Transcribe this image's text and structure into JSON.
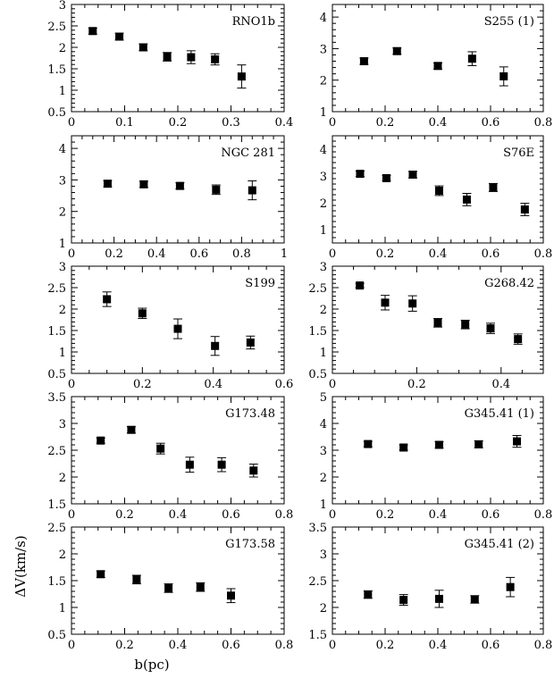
{
  "figure": {
    "ylabel": "ΔV(km/s)",
    "xlabel": "b(pc)"
  },
  "chart_data": [
    {
      "type": "scatter",
      "title": "RNO1b",
      "xlim": [
        0,
        0.4
      ],
      "ylim": [
        0.5,
        3
      ],
      "xticks": [
        0,
        0.1,
        0.2,
        0.3,
        0.4
      ],
      "yticks": [
        0.5,
        1,
        1.5,
        2,
        2.5,
        3
      ],
      "x": [
        0.04,
        0.09,
        0.135,
        0.18,
        0.225,
        0.27,
        0.32
      ],
      "y": [
        2.38,
        2.25,
        2.0,
        1.78,
        1.77,
        1.72,
        1.32
      ],
      "yerr": [
        0.07,
        0.08,
        0.08,
        0.1,
        0.15,
        0.13,
        0.27
      ]
    },
    {
      "type": "scatter",
      "title": "S255 (1)",
      "xlim": [
        0,
        0.8
      ],
      "ylim": [
        1,
        4.4
      ],
      "xticks": [
        0,
        0.2,
        0.4,
        0.6,
        0.8
      ],
      "yticks": [
        1,
        2,
        3,
        4
      ],
      "x": [
        0.12,
        0.245,
        0.4,
        0.53,
        0.65
      ],
      "y": [
        2.6,
        2.92,
        2.45,
        2.68,
        2.12
      ],
      "yerr": [
        0.1,
        0.1,
        0.1,
        0.22,
        0.3
      ]
    },
    {
      "type": "scatter",
      "title": "NGC 281",
      "xlim": [
        0,
        1
      ],
      "ylim": [
        1,
        4.4
      ],
      "xticks": [
        0,
        0.2,
        0.4,
        0.6,
        0.8,
        1
      ],
      "yticks": [
        1,
        2,
        3,
        4
      ],
      "x": [
        0.17,
        0.34,
        0.51,
        0.68,
        0.85
      ],
      "y": [
        2.88,
        2.86,
        2.81,
        2.69,
        2.67
      ],
      "yerr": [
        0.1,
        0.1,
        0.1,
        0.15,
        0.3
      ]
    },
    {
      "type": "scatter",
      "title": "S76E",
      "xlim": [
        0,
        0.8
      ],
      "ylim": [
        0.5,
        4.5
      ],
      "xticks": [
        0,
        0.2,
        0.4,
        0.6,
        0.8
      ],
      "yticks": [
        1,
        2,
        3,
        4
      ],
      "x": [
        0.105,
        0.205,
        0.305,
        0.405,
        0.51,
        0.61,
        0.73
      ],
      "y": [
        3.08,
        2.92,
        3.05,
        2.45,
        2.12,
        2.57,
        1.75
      ],
      "yerr": [
        0.1,
        0.1,
        0.12,
        0.18,
        0.23,
        0.15,
        0.23
      ]
    },
    {
      "type": "scatter",
      "title": "S199",
      "xlim": [
        0,
        0.6
      ],
      "ylim": [
        0.5,
        3
      ],
      "xticks": [
        0,
        0.2,
        0.4,
        0.6
      ],
      "yticks": [
        0.5,
        1,
        1.5,
        2,
        2.5,
        3
      ],
      "x": [
        0.1,
        0.2,
        0.3,
        0.405,
        0.505
      ],
      "y": [
        2.23,
        1.9,
        1.54,
        1.14,
        1.22
      ],
      "yerr": [
        0.17,
        0.12,
        0.23,
        0.22,
        0.15
      ]
    },
    {
      "type": "scatter",
      "title": "G268.42",
      "xlim": [
        0,
        0.5
      ],
      "ylim": [
        0.5,
        3
      ],
      "xticks": [
        0,
        0.2,
        0.4
      ],
      "yticks": [
        0.5,
        1,
        1.5,
        2,
        2.5,
        3
      ],
      "x": [
        0.065,
        0.125,
        0.19,
        0.25,
        0.315,
        0.375,
        0.44
      ],
      "y": [
        2.55,
        2.15,
        2.13,
        1.68,
        1.64,
        1.55,
        1.3
      ],
      "yerr": [
        0.05,
        0.17,
        0.18,
        0.1,
        0.1,
        0.12,
        0.12
      ]
    },
    {
      "type": "scatter",
      "title": "G173.48",
      "xlim": [
        0,
        0.8
      ],
      "ylim": [
        1.5,
        3.5
      ],
      "xticks": [
        0,
        0.2,
        0.4,
        0.6,
        0.8
      ],
      "yticks": [
        1.5,
        2,
        2.5,
        3,
        3.5
      ],
      "x": [
        0.11,
        0.225,
        0.335,
        0.445,
        0.565,
        0.685
      ],
      "y": [
        2.68,
        2.88,
        2.53,
        2.23,
        2.23,
        2.12
      ],
      "yerr": [
        0.05,
        0.06,
        0.1,
        0.14,
        0.13,
        0.12
      ]
    },
    {
      "type": "scatter",
      "title": "G345.41 (1)",
      "xlim": [
        0,
        0.8
      ],
      "ylim": [
        1,
        5
      ],
      "xticks": [
        0,
        0.2,
        0.4,
        0.6,
        0.8
      ],
      "yticks": [
        1,
        2,
        3,
        4,
        5
      ],
      "x": [
        0.135,
        0.27,
        0.405,
        0.555,
        0.7
      ],
      "y": [
        3.23,
        3.1,
        3.2,
        3.22,
        3.33
      ],
      "yerr": [
        0.1,
        0.1,
        0.12,
        0.13,
        0.22
      ]
    },
    {
      "type": "scatter",
      "title": "G173.58",
      "xlim": [
        0,
        0.8
      ],
      "ylim": [
        0.5,
        2.5
      ],
      "xticks": [
        0,
        0.2,
        0.4,
        0.6,
        0.8
      ],
      "yticks": [
        0.5,
        1,
        1.5,
        2,
        2.5
      ],
      "x": [
        0.11,
        0.245,
        0.365,
        0.485,
        0.6
      ],
      "y": [
        1.62,
        1.52,
        1.36,
        1.38,
        1.22
      ],
      "yerr": [
        0.06,
        0.08,
        0.08,
        0.08,
        0.13
      ]
    },
    {
      "type": "scatter",
      "title": "G345.41 (2)",
      "xlim": [
        0,
        0.8
      ],
      "ylim": [
        1.5,
        3.5
      ],
      "xticks": [
        0,
        0.2,
        0.4,
        0.6,
        0.8
      ],
      "yticks": [
        1.5,
        2,
        2.5,
        3,
        3.5
      ],
      "x": [
        0.135,
        0.27,
        0.405,
        0.54,
        0.675
      ],
      "y": [
        2.24,
        2.14,
        2.16,
        2.15,
        2.38
      ],
      "yerr": [
        0.07,
        0.1,
        0.16,
        0.07,
        0.18
      ]
    }
  ]
}
